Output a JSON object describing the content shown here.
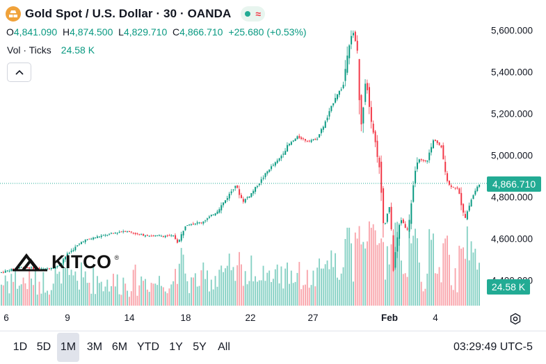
{
  "header": {
    "title": "Gold Spot / U.S. Dollar · 30 · OANDA",
    "ohlc": [
      {
        "key": "O",
        "value": "4,841.090"
      },
      {
        "key": "H",
        "value": "4,874.500"
      },
      {
        "key": "L",
        "value": "4,829.710"
      },
      {
        "key": "C",
        "value": "4,866.710"
      }
    ],
    "change": "+25.680 (+0.53%)",
    "volume_label": "Vol · Ticks",
    "volume_value": "24.58 K",
    "market_status_icon": "green-dot-icon",
    "wave_icon": "wave-icon",
    "collapse_icon": "chevron-up-icon"
  },
  "watermark": {
    "text": "KITCO",
    "registered": "®"
  },
  "colors": {
    "up": "#089981",
    "down": "#f23645",
    "badge": "#22ab94",
    "accent": "#f0a23a"
  },
  "price_axis": {
    "ticks": [
      "5,600.000",
      "5,400.000",
      "5,200.000",
      "5,000.000",
      "4,800.000",
      "4,600.000",
      "4,400.000"
    ],
    "last_price": "4,866.710",
    "volume_badge": "24.58 K"
  },
  "time_axis": {
    "labels": [
      {
        "text": "6",
        "bold": false
      },
      {
        "text": "9",
        "bold": false
      },
      {
        "text": "14",
        "bold": false
      },
      {
        "text": "18",
        "bold": false
      },
      {
        "text": "22",
        "bold": false
      },
      {
        "text": "27",
        "bold": false
      },
      {
        "text": "Feb",
        "bold": true
      },
      {
        "text": "4",
        "bold": false
      }
    ]
  },
  "range_buttons": [
    {
      "label": "1D",
      "active": false
    },
    {
      "label": "5D",
      "active": false
    },
    {
      "label": "1M",
      "active": true
    },
    {
      "label": "3M",
      "active": false
    },
    {
      "label": "6M",
      "active": false
    },
    {
      "label": "YTD",
      "active": false
    },
    {
      "label": "1Y",
      "active": false
    },
    {
      "label": "5Y",
      "active": false
    },
    {
      "label": "All",
      "active": false
    }
  ],
  "clock": "03:29:49 UTC-5",
  "chart_data": {
    "type": "candlestick",
    "symbol": "XAUUSD",
    "interval": "30",
    "y_range": [
      4330,
      5660
    ],
    "last": 4866.71,
    "anchors": [
      [
        0,
        4440
      ],
      [
        0.04,
        4465
      ],
      [
        0.09,
        4455
      ],
      [
        0.12,
        4470
      ],
      [
        0.135,
        4520
      ],
      [
        0.17,
        4590
      ],
      [
        0.2,
        4610
      ],
      [
        0.23,
        4625
      ],
      [
        0.26,
        4640
      ],
      [
        0.29,
        4620
      ],
      [
        0.32,
        4615
      ],
      [
        0.36,
        4615
      ],
      [
        0.37,
        4580
      ],
      [
        0.385,
        4670
      ],
      [
        0.42,
        4680
      ],
      [
        0.45,
        4730
      ],
      [
        0.47,
        4790
      ],
      [
        0.49,
        4860
      ],
      [
        0.505,
        4780
      ],
      [
        0.52,
        4810
      ],
      [
        0.54,
        4870
      ],
      [
        0.56,
        4935
      ],
      [
        0.58,
        4980
      ],
      [
        0.6,
        5050
      ],
      [
        0.62,
        5090
      ],
      [
        0.64,
        5070
      ],
      [
        0.66,
        5080
      ],
      [
        0.68,
        5170
      ],
      [
        0.7,
        5290
      ],
      [
        0.715,
        5330
      ],
      [
        0.725,
        5520
      ],
      [
        0.735,
        5600
      ],
      [
        0.745,
        5500
      ],
      [
        0.752,
        5100
      ],
      [
        0.762,
        5380
      ],
      [
        0.775,
        5160
      ],
      [
        0.79,
        4960
      ],
      [
        0.8,
        4650
      ],
      [
        0.812,
        4760
      ],
      [
        0.82,
        4470
      ],
      [
        0.835,
        4700
      ],
      [
        0.85,
        4640
      ],
      [
        0.87,
        4980
      ],
      [
        0.89,
        4970
      ],
      [
        0.905,
        5080
      ],
      [
        0.92,
        5040
      ],
      [
        0.935,
        4860
      ],
      [
        0.955,
        4840
      ],
      [
        0.97,
        4700
      ],
      [
        0.985,
        4800
      ],
      [
        1,
        4867
      ]
    ]
  }
}
